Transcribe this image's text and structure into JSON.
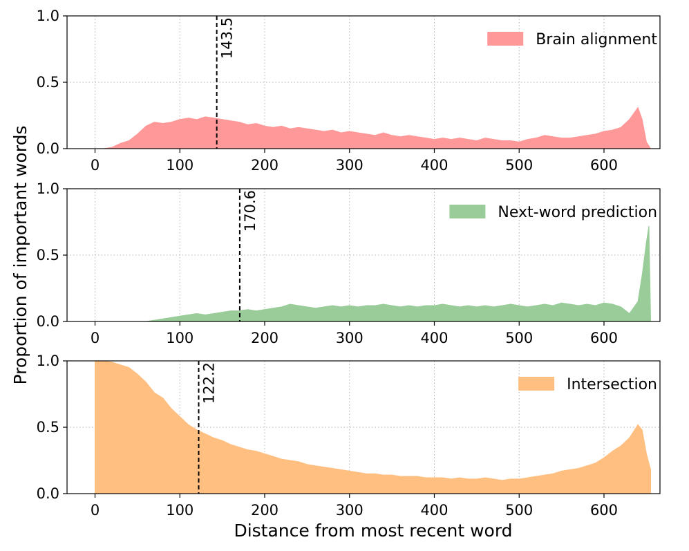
{
  "figure": {
    "ylabel": "Proportion of important words",
    "xlabel": "Distance from most recent word"
  },
  "chart_data": [
    {
      "type": "area",
      "legend": "Brain alignment",
      "legend_placement": "top-right",
      "color": "#ff9999",
      "mean_line": 143.5,
      "mean_label": "143.5",
      "xlim": [
        -33,
        666
      ],
      "ylim": [
        0,
        1.0
      ],
      "xticks": [
        0,
        100,
        200,
        300,
        400,
        500,
        600
      ],
      "yticks": [
        0.0,
        0.5,
        1.0
      ],
      "ytick_labels": [
        "0.0",
        "0.5",
        "1.0"
      ],
      "grid": true,
      "x": [
        0,
        10,
        20,
        30,
        40,
        50,
        60,
        70,
        80,
        90,
        100,
        110,
        120,
        130,
        140,
        150,
        160,
        170,
        180,
        190,
        200,
        210,
        220,
        230,
        240,
        250,
        260,
        270,
        280,
        290,
        300,
        310,
        320,
        330,
        340,
        350,
        360,
        370,
        380,
        390,
        400,
        410,
        420,
        430,
        440,
        450,
        460,
        470,
        480,
        490,
        500,
        510,
        520,
        530,
        540,
        550,
        560,
        570,
        580,
        590,
        600,
        610,
        620,
        630,
        640,
        645,
        650,
        655
      ],
      "y": [
        0.0,
        0.0,
        0.01,
        0.04,
        0.06,
        0.11,
        0.17,
        0.2,
        0.19,
        0.2,
        0.22,
        0.23,
        0.22,
        0.24,
        0.23,
        0.22,
        0.21,
        0.2,
        0.18,
        0.19,
        0.17,
        0.16,
        0.17,
        0.15,
        0.16,
        0.15,
        0.14,
        0.13,
        0.14,
        0.12,
        0.13,
        0.12,
        0.11,
        0.1,
        0.12,
        0.1,
        0.09,
        0.1,
        0.09,
        0.08,
        0.07,
        0.08,
        0.07,
        0.08,
        0.07,
        0.06,
        0.08,
        0.07,
        0.06,
        0.06,
        0.05,
        0.07,
        0.08,
        0.1,
        0.09,
        0.08,
        0.08,
        0.09,
        0.1,
        0.11,
        0.13,
        0.14,
        0.16,
        0.22,
        0.31,
        0.22,
        0.05,
        0.0
      ]
    },
    {
      "type": "area",
      "legend": "Next-word prediction",
      "legend_placement": "top-right",
      "color": "#99cc99",
      "mean_line": 170.6,
      "mean_label": "170.6",
      "xlim": [
        -33,
        666
      ],
      "ylim": [
        0,
        1.0
      ],
      "xticks": [
        0,
        100,
        200,
        300,
        400,
        500,
        600
      ],
      "yticks": [
        0.0,
        0.5,
        1.0
      ],
      "ytick_labels": [
        "0.0",
        "0.5",
        "1.0"
      ],
      "grid": true,
      "x": [
        0,
        10,
        20,
        30,
        40,
        50,
        60,
        70,
        80,
        90,
        100,
        110,
        120,
        130,
        140,
        150,
        160,
        170,
        180,
        190,
        200,
        210,
        220,
        230,
        240,
        250,
        260,
        270,
        280,
        290,
        300,
        310,
        320,
        330,
        340,
        350,
        360,
        370,
        380,
        390,
        400,
        410,
        420,
        430,
        440,
        450,
        460,
        470,
        480,
        490,
        500,
        510,
        520,
        530,
        540,
        550,
        560,
        570,
        580,
        590,
        600,
        610,
        620,
        630,
        640,
        645,
        650,
        653,
        655
      ],
      "y": [
        0.0,
        0.0,
        0.0,
        0.0,
        0.0,
        0.0,
        0.0,
        0.01,
        0.02,
        0.03,
        0.04,
        0.05,
        0.06,
        0.05,
        0.06,
        0.07,
        0.08,
        0.08,
        0.09,
        0.08,
        0.09,
        0.1,
        0.11,
        0.13,
        0.12,
        0.11,
        0.1,
        0.11,
        0.12,
        0.11,
        0.12,
        0.11,
        0.12,
        0.12,
        0.13,
        0.12,
        0.11,
        0.12,
        0.11,
        0.12,
        0.12,
        0.13,
        0.12,
        0.11,
        0.12,
        0.11,
        0.12,
        0.11,
        0.12,
        0.13,
        0.12,
        0.11,
        0.12,
        0.13,
        0.12,
        0.14,
        0.13,
        0.12,
        0.13,
        0.12,
        0.14,
        0.13,
        0.11,
        0.06,
        0.15,
        0.35,
        0.6,
        0.72,
        0.0
      ]
    },
    {
      "type": "area",
      "legend": "Intersection",
      "legend_placement": "top-right",
      "color": "#ffbf80",
      "mean_line": 122.2,
      "mean_label": "122.2",
      "xlim": [
        -33,
        666
      ],
      "ylim": [
        0,
        1.0
      ],
      "xticks": [
        0,
        100,
        200,
        300,
        400,
        500,
        600
      ],
      "yticks": [
        0.0,
        0.5,
        1.0
      ],
      "ytick_labels": [
        "0.0",
        "0.5",
        "1.0"
      ],
      "grid": true,
      "x": [
        0,
        10,
        20,
        30,
        40,
        50,
        60,
        70,
        80,
        90,
        100,
        110,
        120,
        130,
        140,
        150,
        160,
        170,
        180,
        190,
        200,
        210,
        220,
        230,
        240,
        250,
        260,
        270,
        280,
        290,
        300,
        310,
        320,
        330,
        340,
        350,
        360,
        370,
        380,
        390,
        400,
        410,
        420,
        430,
        440,
        450,
        460,
        470,
        480,
        490,
        500,
        510,
        520,
        530,
        540,
        550,
        560,
        570,
        580,
        590,
        600,
        610,
        620,
        630,
        640,
        645,
        650,
        655
      ],
      "y": [
        1.0,
        1.0,
        0.99,
        0.97,
        0.95,
        0.9,
        0.84,
        0.76,
        0.72,
        0.64,
        0.58,
        0.52,
        0.48,
        0.45,
        0.42,
        0.4,
        0.37,
        0.35,
        0.33,
        0.32,
        0.3,
        0.28,
        0.26,
        0.25,
        0.24,
        0.22,
        0.21,
        0.2,
        0.19,
        0.18,
        0.17,
        0.16,
        0.15,
        0.15,
        0.14,
        0.14,
        0.13,
        0.13,
        0.13,
        0.12,
        0.12,
        0.12,
        0.11,
        0.12,
        0.11,
        0.11,
        0.12,
        0.11,
        0.1,
        0.11,
        0.11,
        0.12,
        0.13,
        0.14,
        0.15,
        0.17,
        0.18,
        0.19,
        0.21,
        0.23,
        0.27,
        0.32,
        0.36,
        0.42,
        0.52,
        0.48,
        0.3,
        0.18
      ]
    }
  ]
}
